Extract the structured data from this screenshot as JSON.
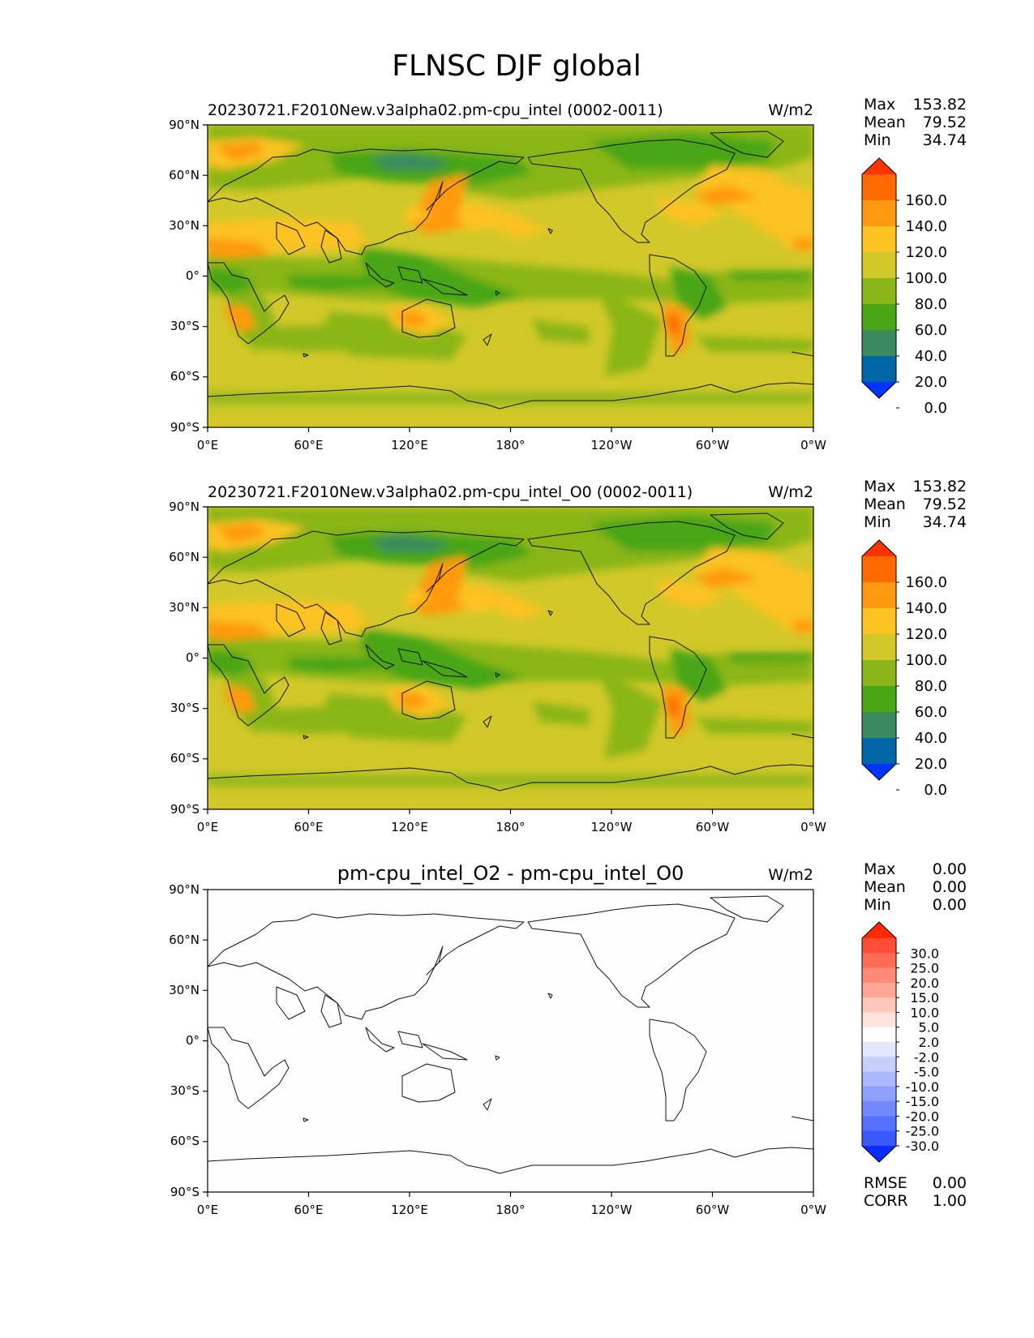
{
  "chart_data": {
    "type": "map-contour",
    "suptitle": "FLNSC DJF global",
    "panels": [
      {
        "title_left": "20230721.F2010New.v3alpha02.pm-cpu_intel (0002-0011)",
        "title_right": "W/m2",
        "stats": [
          {
            "label": "Max",
            "value": "153.82"
          },
          {
            "label": "Mean",
            "value": "79.52"
          },
          {
            "label": "Min",
            "value": "34.74"
          }
        ],
        "colorbar": {
          "labels": [
            "160.0",
            "140.0",
            "120.0",
            "100.0",
            "80.0",
            "60.0",
            "40.0",
            "20.0",
            "0.0"
          ],
          "levels": [
            180,
            160,
            140,
            120,
            100,
            80,
            60,
            40,
            20,
            0,
            -20
          ],
          "colors": [
            "#ff3300",
            "#ff6a00",
            "#ff9a10",
            "#fcc322",
            "#d2c82a",
            "#8ab619",
            "#4aa614",
            "#3a8a5e",
            "#0066a8",
            "#0033ff"
          ]
        }
      },
      {
        "title_left": "20230721.F2010New.v3alpha02.pm-cpu_intel_O0 (0002-0011)",
        "title_right": "W/m2",
        "stats": [
          {
            "label": "Max",
            "value": "153.82"
          },
          {
            "label": "Mean",
            "value": "79.52"
          },
          {
            "label": "Min",
            "value": "34.74"
          }
        ],
        "colorbar": {
          "labels": [
            "160.0",
            "140.0",
            "120.0",
            "100.0",
            "80.0",
            "60.0",
            "40.0",
            "20.0",
            "0.0"
          ],
          "levels": [
            180,
            160,
            140,
            120,
            100,
            80,
            60,
            40,
            20,
            0,
            -20
          ],
          "colors": [
            "#ff3300",
            "#ff6a00",
            "#ff9a10",
            "#fcc322",
            "#d2c82a",
            "#8ab619",
            "#4aa614",
            "#3a8a5e",
            "#0066a8",
            "#0033ff"
          ]
        }
      },
      {
        "title_center": "pm-cpu_intel_O2 - pm-cpu_intel_O0",
        "title_right": "W/m2",
        "stats": [
          {
            "label": "Max",
            "value": "0.00"
          },
          {
            "label": "Mean",
            "value": "0.00"
          },
          {
            "label": "Min",
            "value": "0.00"
          }
        ],
        "colorbar": {
          "labels": [
            "30.0",
            "25.0",
            "20.0",
            "15.0",
            "10.0",
            "5.0",
            "2.0",
            "-2.0",
            "-5.0",
            "-10.0",
            "-15.0",
            "-20.0",
            "-25.0",
            "-30.0"
          ],
          "colors": [
            "#ff2a00",
            "#ff4d3a",
            "#ff6c56",
            "#ff8a76",
            "#ffa898",
            "#ffc6ba",
            "#ffe4de",
            "#ffffff",
            "#e2e8ff",
            "#c6d0ff",
            "#aab8ff",
            "#8ea0ff",
            "#7288ff",
            "#5670ff",
            "#3a58ff",
            "#0a2cff"
          ]
        },
        "footer_stats": [
          {
            "label": "RMSE",
            "value": "0.00"
          },
          {
            "label": "CORR",
            "value": "1.00"
          }
        ]
      }
    ],
    "x_ticks": [
      "0°E",
      "60°E",
      "120°E",
      "180°",
      "120°W",
      "60°W",
      "0°W"
    ],
    "y_ticks": [
      "90°N",
      "60°N",
      "30°N",
      "0°",
      "30°S",
      "60°S",
      "90°S"
    ],
    "xlim": [
      0,
      360
    ],
    "ylim": [
      -90,
      90
    ]
  }
}
